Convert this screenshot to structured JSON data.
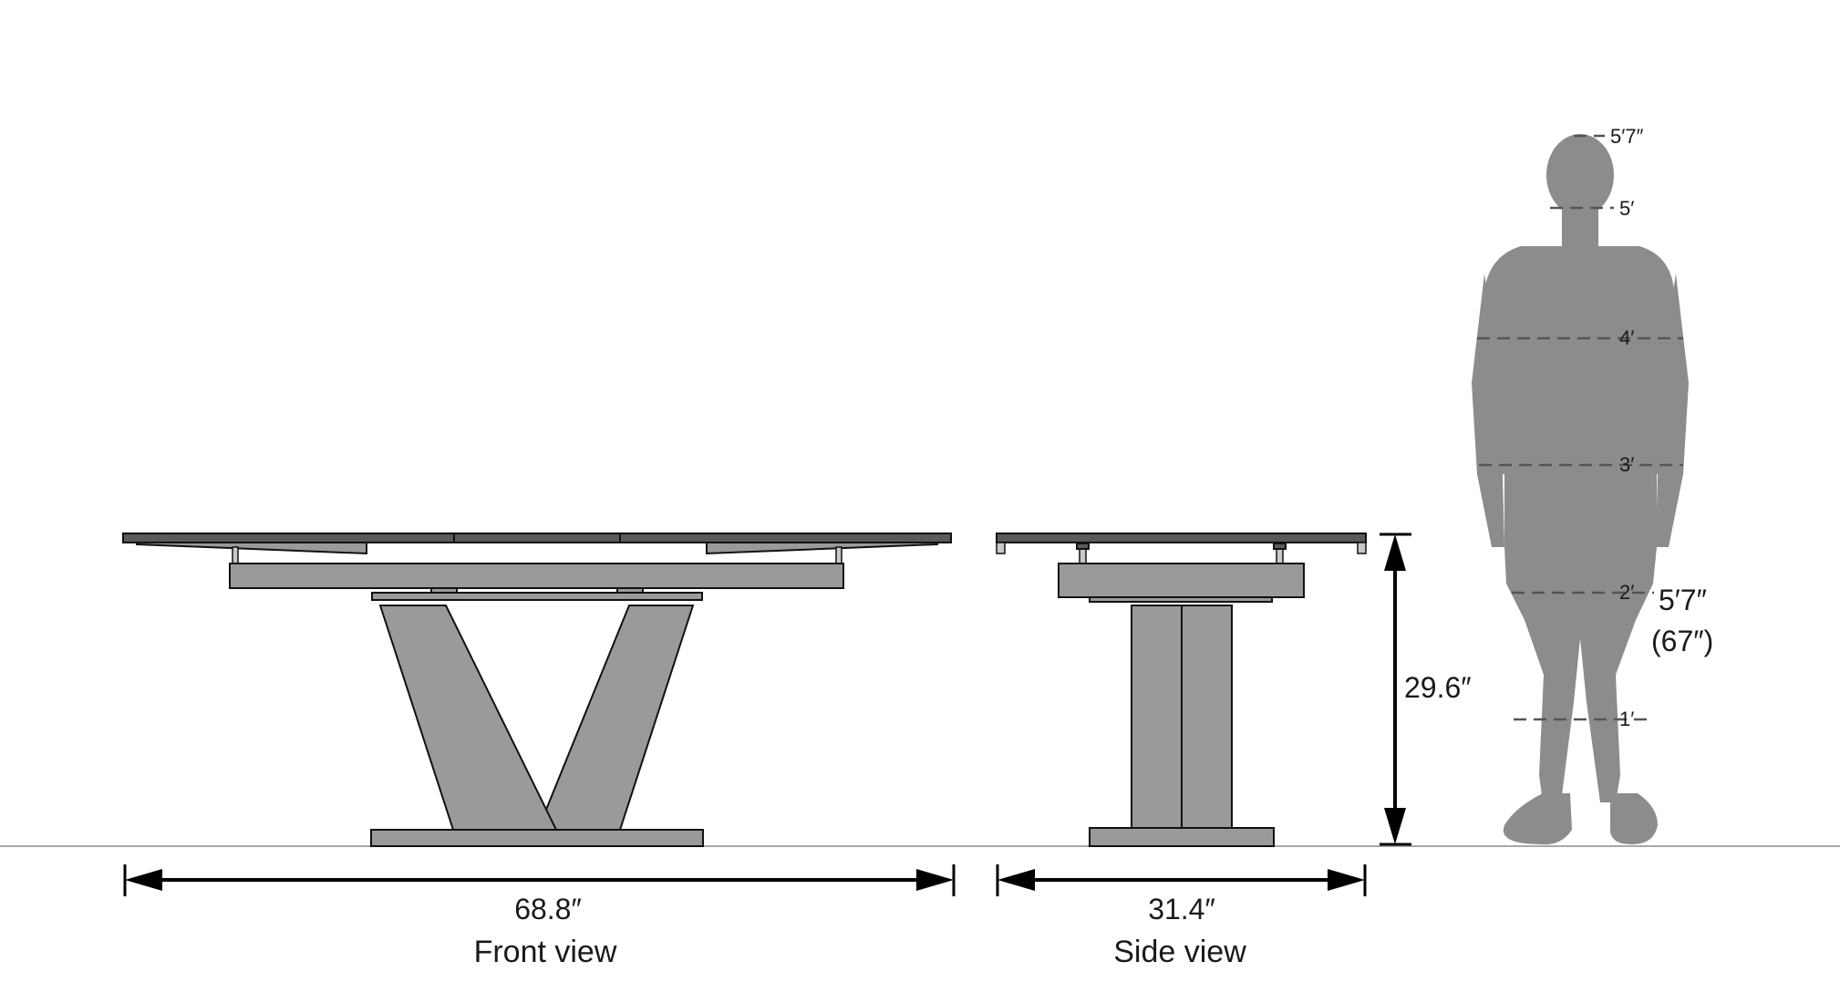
{
  "front_view": {
    "width_label": "68.8″",
    "caption": "Front view"
  },
  "side_view": {
    "width_label": "31.4″",
    "height_label": "29.6″",
    "caption": "Side view"
  },
  "person_scale": {
    "marks": [
      "5′7″",
      "5′",
      "4′",
      "3′",
      "2′",
      "1′"
    ],
    "height_label_line1": "5′7″",
    "height_label_line2": "(67″)"
  },
  "colors": {
    "furniture_fill": "#9b9a9a",
    "person_fill": "#8c8c8c",
    "outline": "#111111",
    "ground": "#a8a8a8"
  }
}
